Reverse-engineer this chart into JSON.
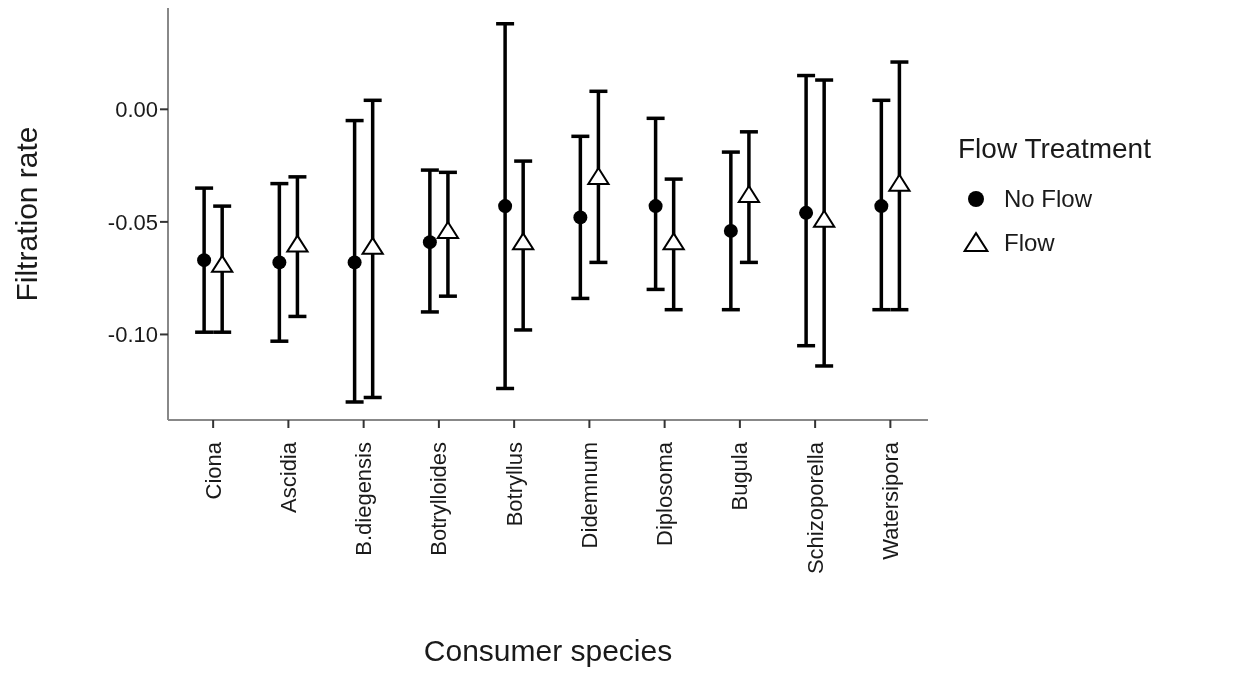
{
  "chart_data": {
    "type": "scatter",
    "xlabel": "Consumer species",
    "ylabel": "Filtration rate",
    "legend_title": "Flow Treatment",
    "legend": "right",
    "categories": [
      "Ciona",
      "Ascidia",
      "B.diegensis",
      "Botrylloides",
      "Botryllus",
      "Didemnum",
      "Diplosoma",
      "Bugula",
      "Schizoporella",
      "Watersipora"
    ],
    "ylim": [
      -0.138,
      0.045
    ],
    "yticks": [
      {
        "value": -0.1,
        "label": "-0.10"
      },
      {
        "value": -0.05,
        "label": "-0.05"
      },
      {
        "value": 0,
        "label": "0.00"
      }
    ],
    "series": [
      {
        "name": "No Flow",
        "color": "#000000",
        "marker": "circle",
        "values": [
          -0.067,
          -0.068,
          -0.068,
          -0.059,
          -0.043,
          -0.048,
          -0.043,
          -0.054,
          -0.046,
          -0.043
        ],
        "errors": [
          [
            -0.099,
            -0.035
          ],
          [
            -0.103,
            -0.033
          ],
          [
            -0.13,
            -0.005
          ],
          [
            -0.09,
            -0.027
          ],
          [
            -0.124,
            0.038
          ],
          [
            -0.084,
            -0.012
          ],
          [
            -0.08,
            -0.004
          ],
          [
            -0.089,
            -0.019
          ],
          [
            -0.105,
            0.015
          ],
          [
            -0.089,
            0.004
          ]
        ]
      },
      {
        "name": "Flow",
        "color": "#000000",
        "marker": "triangle",
        "values": [
          -0.069,
          -0.06,
          -0.061,
          -0.054,
          -0.059,
          -0.03,
          -0.059,
          -0.038,
          -0.049,
          -0.033
        ],
        "errors": [
          [
            -0.099,
            -0.043
          ],
          [
            -0.092,
            -0.03
          ],
          [
            -0.128,
            0.004
          ],
          [
            -0.083,
            -0.028
          ],
          [
            -0.098,
            -0.023
          ],
          [
            -0.068,
            0.008
          ],
          [
            -0.089,
            -0.031
          ],
          [
            -0.068,
            -0.01
          ],
          [
            -0.114,
            0.013
          ],
          [
            -0.089,
            0.021
          ]
        ]
      }
    ]
  }
}
